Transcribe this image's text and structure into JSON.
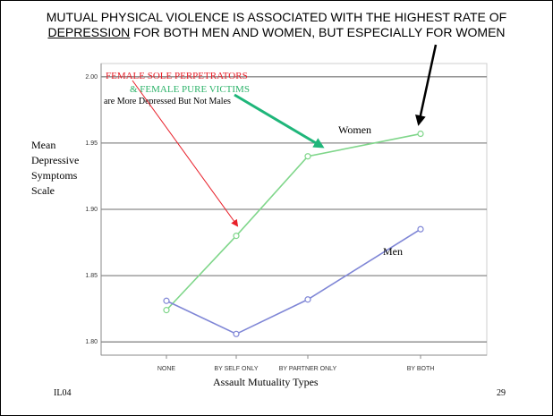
{
  "slide": {
    "headline_line1": "MUTUAL PHYSICAL VIOLENCE IS ASSOCIATED WITH THE HIGHEST RATE OF",
    "headline_line2_underlined": "DEPRESSION",
    "headline_line2_rest": " FOR BOTH MEN AND WOMEN, BUT ESPECIALLY FOR WOMEN",
    "ylabel_lines": [
      "Mean",
      "Depressive",
      "Symptoms",
      "Scale"
    ],
    "xlabel": "Assault Mutuality Types",
    "footer_left": "IL04",
    "page_number": "29"
  },
  "annotations": {
    "red": "FEMALE SOLE PERPETRATORS",
    "green": "& FEMALE PURE VICTIMS",
    "black": "are More  Depressed But Not Males",
    "red_color": "#e8202a",
    "green_color": "#2db36a"
  },
  "chart_data": {
    "type": "line",
    "categories": [
      "NONE",
      "BY SELF ONLY",
      "BY PARTNER ONLY",
      "BY BOTH"
    ],
    "series": [
      {
        "name": "Women",
        "values": [
          1.824,
          1.88,
          1.94,
          1.957
        ],
        "color": "#7fd68a"
      },
      {
        "name": "Men",
        "values": [
          1.831,
          1.806,
          1.832,
          1.885
        ],
        "color": "#7f86d6"
      }
    ],
    "yticks": [
      "1.80",
      "1.85",
      "1.90",
      "1.95",
      "2.00"
    ],
    "ylim": [
      1.79,
      2.01
    ],
    "grid": true,
    "xlabel": "Assault Mutuality Types",
    "ylabel": "Mean Depressive Symptoms Scale"
  }
}
